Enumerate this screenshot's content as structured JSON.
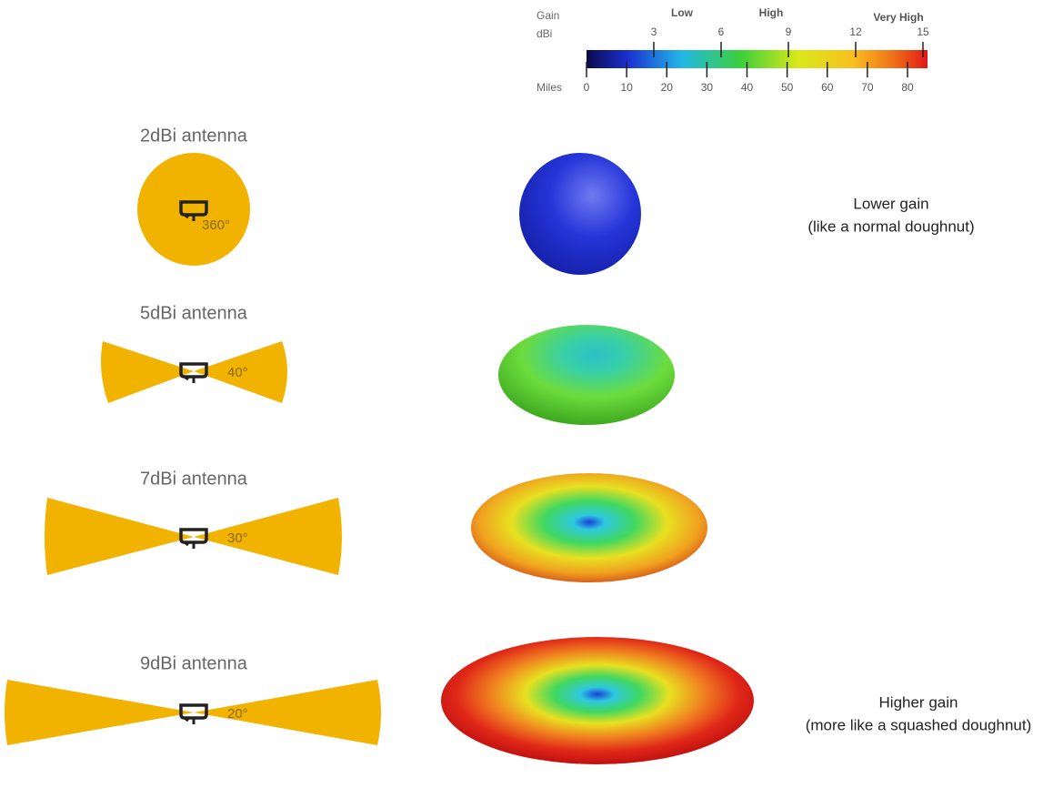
{
  "legend": {
    "gain_label": "Gain",
    "unit_label": "dBi",
    "levels": [
      "Low",
      "High",
      "Very High"
    ],
    "dbi_ticks": [
      3,
      6,
      9,
      12,
      15
    ],
    "miles_label": "Miles",
    "miles_ticks": [
      0,
      10,
      20,
      30,
      40,
      50,
      60,
      70,
      80
    ]
  },
  "antennas": [
    {
      "label": "2dBi antenna",
      "angle": "360°"
    },
    {
      "label": "5dBi antenna",
      "angle": "40°"
    },
    {
      "label": "7dBi antenna",
      "angle": "30°"
    },
    {
      "label": "9dBi antenna",
      "angle": "20°"
    }
  ],
  "notes": {
    "lower": {
      "title": "Lower gain",
      "subtitle": "(like a normal doughnut)"
    },
    "higher": {
      "title": "Higher gain",
      "subtitle": "(more like a squashed doughnut)"
    }
  }
}
